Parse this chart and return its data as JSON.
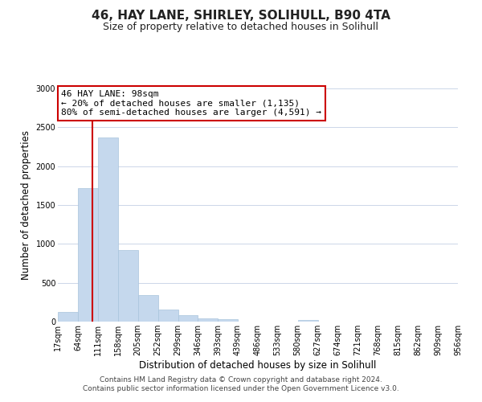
{
  "title": "46, HAY LANE, SHIRLEY, SOLIHULL, B90 4TA",
  "subtitle": "Size of property relative to detached houses in Solihull",
  "xlabel": "Distribution of detached houses by size in Solihull",
  "ylabel": "Number of detached properties",
  "bar_edges": [
    17,
    64,
    111,
    158,
    205,
    252,
    299,
    346,
    393,
    439,
    486,
    533,
    580,
    627,
    674,
    721,
    768,
    815,
    862,
    909,
    956
  ],
  "bar_heights": [
    120,
    1720,
    2370,
    920,
    345,
    155,
    80,
    45,
    30,
    0,
    0,
    0,
    20,
    0,
    0,
    0,
    0,
    0,
    0,
    0
  ],
  "bar_color": "#c5d8ed",
  "bar_edge_color": "#a8c4dc",
  "vline_x": 98,
  "vline_color": "#cc0000",
  "annotation_text": "46 HAY LANE: 98sqm\n← 20% of detached houses are smaller (1,135)\n80% of semi-detached houses are larger (4,591) →",
  "annotation_box_color": "#ffffff",
  "annotation_box_edge": "#cc0000",
  "ylim": [
    0,
    3000
  ],
  "yticks": [
    0,
    500,
    1000,
    1500,
    2000,
    2500,
    3000
  ],
  "tick_labels": [
    "17sqm",
    "64sqm",
    "111sqm",
    "158sqm",
    "205sqm",
    "252sqm",
    "299sqm",
    "346sqm",
    "393sqm",
    "439sqm",
    "486sqm",
    "533sqm",
    "580sqm",
    "627sqm",
    "674sqm",
    "721sqm",
    "768sqm",
    "815sqm",
    "862sqm",
    "909sqm",
    "956sqm"
  ],
  "footer_text": "Contains HM Land Registry data © Crown copyright and database right 2024.\nContains public sector information licensed under the Open Government Licence v3.0.",
  "bg_color": "#ffffff",
  "grid_color": "#ccd6e8",
  "title_fontsize": 11,
  "subtitle_fontsize": 9,
  "axis_label_fontsize": 8.5,
  "tick_fontsize": 7,
  "footer_fontsize": 6.5,
  "annotation_fontsize": 8
}
